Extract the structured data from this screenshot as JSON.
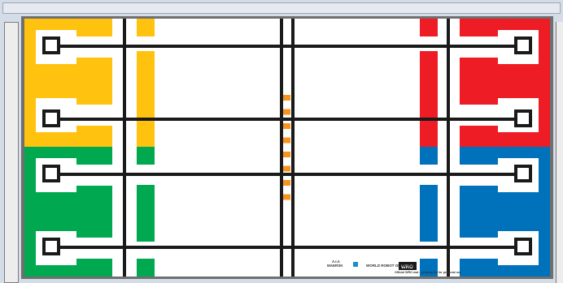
{
  "colors": {
    "yellow": "#fec20f",
    "red": "#ee1c25",
    "green": "#00a950",
    "blue": "#0072bc",
    "track": "#1a1a1a",
    "orange": "#f7941d",
    "white": "#ffffff"
  },
  "board": {
    "logos": {
      "maersk_text": "MAERSK",
      "maersk_sub": "Λ.Ι.Λ",
      "wro_text": "WRO",
      "wro_sub": "WORLD ROBOT OLYMPIAD",
      "footer_text": "Official WRO mat – printing file for personal use"
    }
  }
}
